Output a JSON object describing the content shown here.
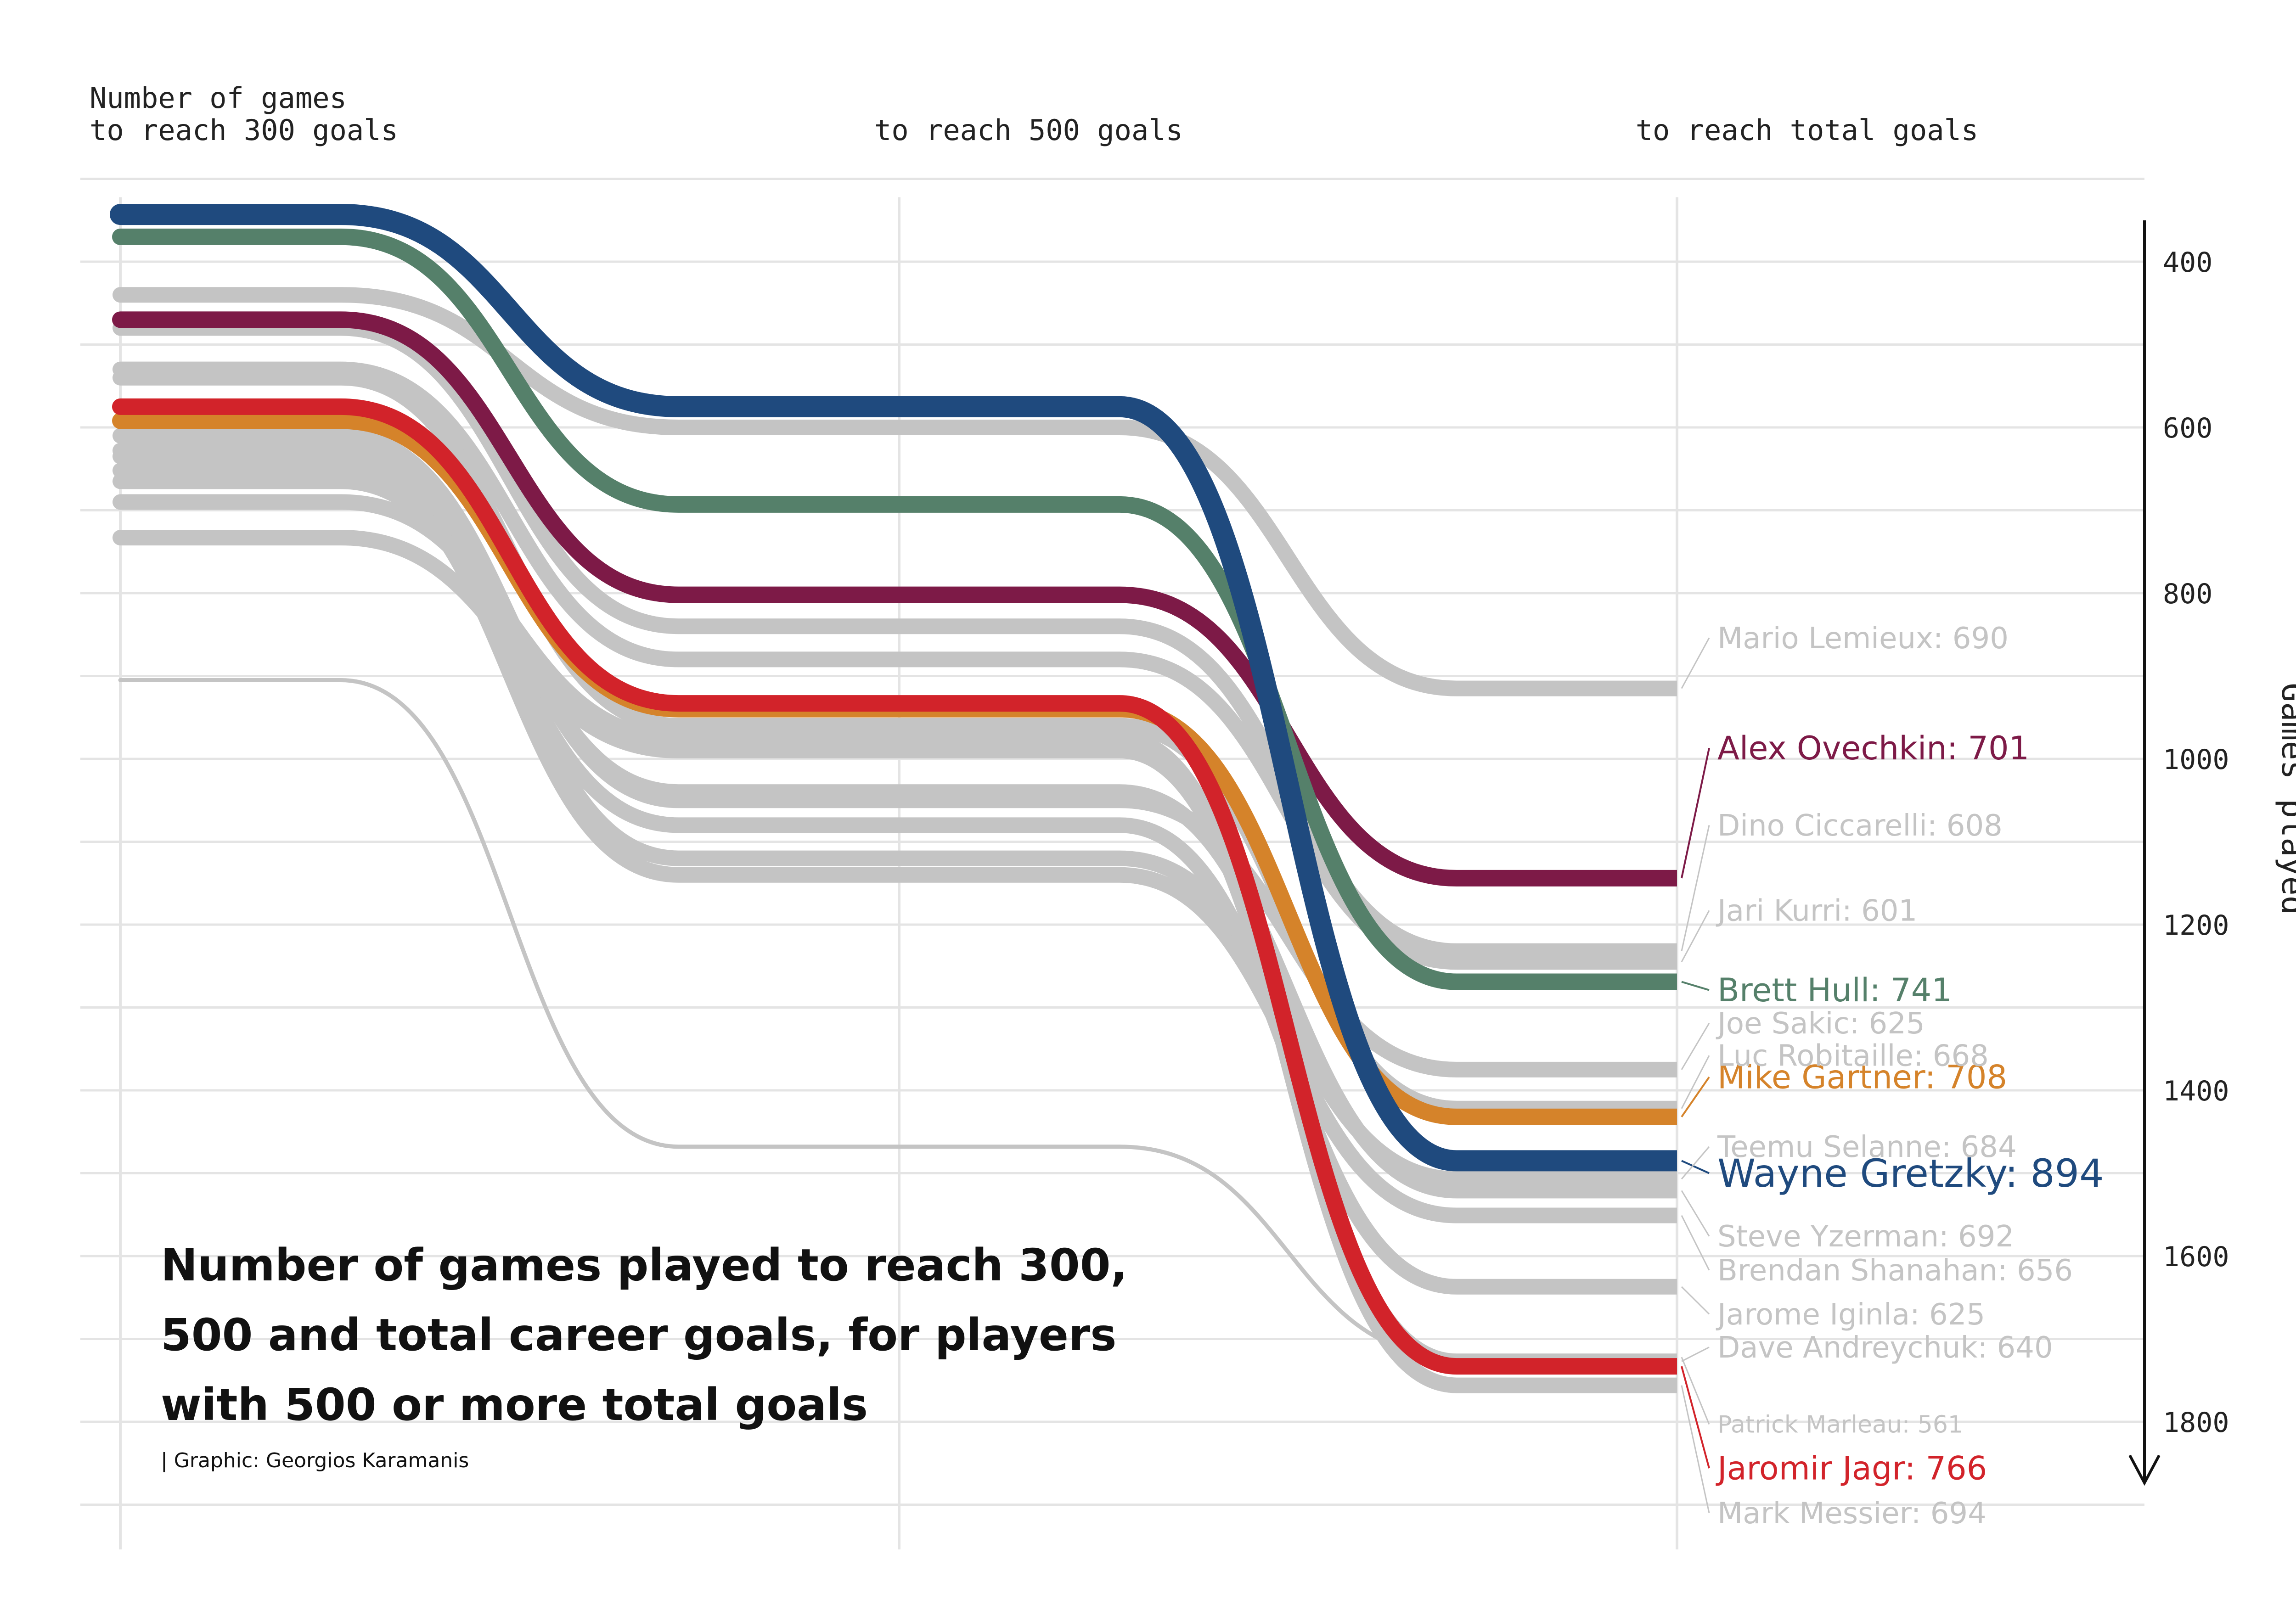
{
  "chart_data": {
    "type": "line",
    "title": "Number of games played to reach 300, 500 and total career goals, for players with 500 or more total goals",
    "caption": "| Graphic: Georgios Karamanis",
    "x": [
      "Number of games\nto reach 300 goals",
      "to reach 500 goals",
      "to reach total goals"
    ],
    "ylabel": "Games played",
    "ylim": [
      1900,
      300
    ],
    "y_inverted": true,
    "yticks": [
      400,
      600,
      800,
      1000,
      1200,
      1400,
      1600,
      1800
    ],
    "grid": true,
    "label_format": "{name}: {goals}",
    "colors": {
      "gray": "#c4c4c4",
      "gretzky": "#1f4a7e",
      "hull": "#55806a",
      "ovechkin": "#7d1a47",
      "jagr": "#d2232a",
      "gartner": "#d5832a"
    },
    "series": [
      {
        "name": "Wayne Gretzky",
        "goals": 894,
        "values": [
          343,
          575,
          1485
        ],
        "color": "#1f4a7e",
        "highlight": true,
        "label_y": 1500
      },
      {
        "name": "Brett Hull",
        "goals": 741,
        "values": [
          370,
          693,
          1269
        ],
        "color": "#55806a",
        "highlight": true,
        "label_y": 1279
      },
      {
        "name": "Alex Ovechkin",
        "goals": 701,
        "values": [
          470,
          802,
          1144
        ],
        "color": "#7d1a47",
        "highlight": true,
        "label_y": 987
      },
      {
        "name": "Jaromir Jagr",
        "goals": 766,
        "values": [
          575,
          933,
          1733
        ],
        "color": "#d2232a",
        "highlight": true,
        "label_y": 1856
      },
      {
        "name": "Mike Gartner",
        "goals": 708,
        "values": [
          592,
          940,
          1432
        ],
        "color": "#d5832a",
        "highlight": true,
        "label_y": 1384
      },
      {
        "name": "Mario Lemieux",
        "goals": 690,
        "values": [
          440,
          600,
          915
        ],
        "color": "#c4c4c4",
        "highlight": false,
        "label_y": 854
      },
      {
        "name": "Dino Ciccarelli",
        "goals": 608,
        "values": [
          480,
          840,
          1232
        ],
        "color": "#c4c4c4",
        "highlight": false,
        "label_y": 1080
      },
      {
        "name": "Jari Kurri",
        "goals": 601,
        "values": [
          530,
          880,
          1245
        ],
        "color": "#c4c4c4",
        "highlight": false,
        "label_y": 1183
      },
      {
        "name": "Joe Sakic",
        "goals": 625,
        "values": [
          610,
          1050,
          1375
        ],
        "color": "#c4c4c4",
        "highlight": false,
        "label_y": 1319
      },
      {
        "name": "Luc Robitaille",
        "goals": 668,
        "values": [
          540,
          960,
          1422
        ],
        "color": "#c4c4c4",
        "highlight": false,
        "label_y": 1358
      },
      {
        "name": "Teemu Selanne",
        "goals": 684,
        "values": [
          635,
          1120,
          1507
        ],
        "color": "#c4c4c4",
        "highlight": false,
        "label_y": 1468
      },
      {
        "name": "Steve Yzerman",
        "goals": 692,
        "values": [
          628,
          1040,
          1521
        ],
        "color": "#c4c4c4",
        "highlight": false,
        "label_y": 1576
      },
      {
        "name": "Brendan Shanahan",
        "goals": 656,
        "values": [
          652,
          1140,
          1551
        ],
        "color": "#c4c4c4",
        "highlight": false,
        "label_y": 1617
      },
      {
        "name": "Jarome Iginla",
        "goals": 625,
        "values": [
          665,
          1080,
          1637
        ],
        "color": "#c4c4c4",
        "highlight": false,
        "label_y": 1670
      },
      {
        "name": "Dave Andreychuk",
        "goals": 640,
        "values": [
          733,
          990,
          1727
        ],
        "color": "#c4c4c4",
        "highlight": false,
        "label_y": 1710
      },
      {
        "name": "Patrick Marleau",
        "goals": 561,
        "values": [
          905,
          1468,
          1722
        ],
        "color": "#c4c4c4",
        "highlight": false,
        "label_y": 1803,
        "thin": true
      },
      {
        "name": "Mark Messier",
        "goals": 694,
        "values": [
          690,
          975,
          1756
        ],
        "color": "#c4c4c4",
        "highlight": false,
        "label_y": 1910
      }
    ]
  }
}
